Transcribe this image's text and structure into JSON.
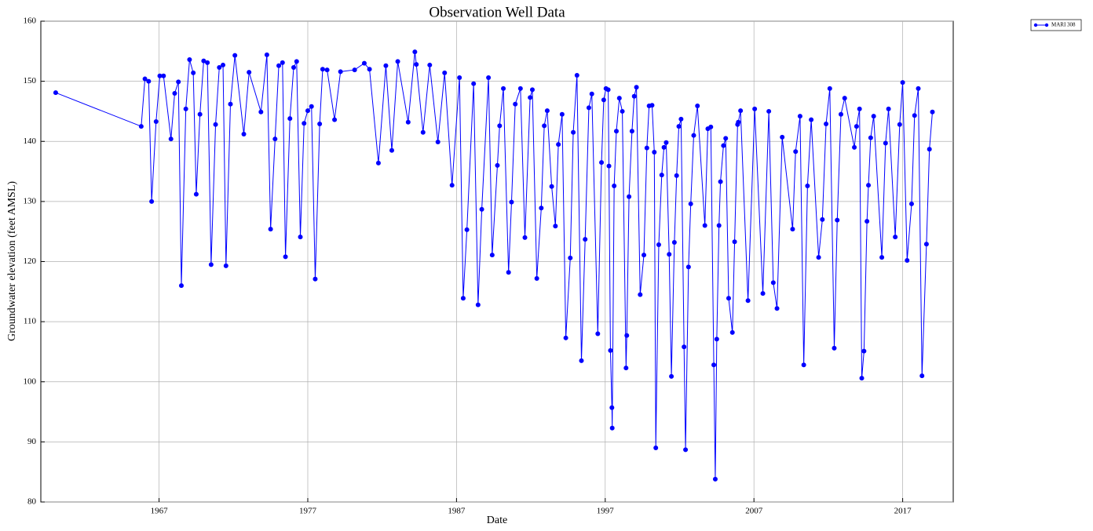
{
  "chart_data": {
    "type": "line",
    "title": "Observation Well Data",
    "x_label": "Date",
    "y_label": "Groundwater elevation (feet AMSL)",
    "xlim": [
      1959.05,
      2020.4
    ],
    "ylim": [
      80,
      160
    ],
    "xticks": [
      1967,
      1977,
      1987,
      1997,
      2007,
      2017
    ],
    "yticks": [
      80,
      90,
      100,
      110,
      120,
      130,
      140,
      150,
      160
    ],
    "grid": true,
    "legend": "upper right",
    "x": [
      1960.05,
      1965.8,
      1966.05,
      1966.3,
      1966.5,
      1966.8,
      1967.05,
      1967.3,
      1967.8,
      1968.05,
      1968.3,
      1968.5,
      1968.8,
      1969.05,
      1969.3,
      1969.5,
      1969.75,
      1970.0,
      1970.25,
      1970.5,
      1970.8,
      1971.05,
      1971.3,
      1971.5,
      1971.8,
      1972.1,
      1972.7,
      1973.05,
      1973.85,
      1974.25,
      1974.5,
      1974.8,
      1975.05,
      1975.3,
      1975.5,
      1975.8,
      1976.05,
      1976.25,
      1976.5,
      1976.75,
      1977.0,
      1977.25,
      1977.5,
      1977.8,
      1978.0,
      1978.3,
      1978.8,
      1979.2,
      1980.15,
      1980.8,
      1981.15,
      1981.75,
      1982.25,
      1982.65,
      1983.05,
      1983.75,
      1984.2,
      1984.3,
      1984.75,
      1985.2,
      1985.75,
      1986.2,
      1986.7,
      1987.2,
      1987.45,
      1987.7,
      1988.15,
      1988.45,
      1988.7,
      1989.15,
      1989.4,
      1989.75,
      1989.9,
      1990.15,
      1990.5,
      1990.7,
      1990.95,
      1991.3,
      1991.6,
      1991.95,
      1992.1,
      1992.4,
      1992.7,
      1992.9,
      1993.1,
      1993.4,
      1993.65,
      1993.85,
      1994.1,
      1994.35,
      1994.65,
      1994.85,
      1995.1,
      1995.4,
      1995.65,
      1995.9,
      1996.1,
      1996.5,
      1996.75,
      1996.9,
      1997.05,
      1997.2,
      1997.25,
      1997.35,
      1997.45,
      1997.47,
      1997.6,
      1997.75,
      1997.95,
      1998.15,
      1998.4,
      1998.45,
      1998.6,
      1998.8,
      1998.95,
      1999.1,
      1999.35,
      1999.6,
      1999.8,
      1999.95,
      2000.15,
      2000.3,
      2000.4,
      2000.6,
      2000.8,
      2000.95,
      2001.1,
      2001.3,
      2001.45,
      2001.65,
      2001.8,
      2001.95,
      2002.1,
      2002.3,
      2002.4,
      2002.6,
      2002.75,
      2002.95,
      2003.2,
      2003.7,
      2003.9,
      2004.1,
      2004.3,
      2004.4,
      2004.5,
      2004.65,
      2004.75,
      2004.95,
      2005.1,
      2005.3,
      2005.55,
      2005.7,
      2005.9,
      2005.95,
      2006.1,
      2006.6,
      2007.05,
      2007.6,
      2008.0,
      2008.3,
      2008.55,
      2008.9,
      2009.6,
      2009.8,
      2010.1,
      2010.35,
      2010.6,
      2010.85,
      2011.35,
      2011.6,
      2011.85,
      2012.1,
      2012.4,
      2012.6,
      2012.85,
      2013.1,
      2013.75,
      2013.9,
      2014.1,
      2014.25,
      2014.4,
      2014.6,
      2014.7,
      2014.85,
      2015.05,
      2015.6,
      2015.85,
      2016.05,
      2016.5,
      2016.8,
      2017.0,
      2017.3,
      2017.6,
      2017.8,
      2018.05,
      2018.3,
      2018.6,
      2018.8,
      2019.0
    ],
    "series": [
      {
        "name": "MARI 308",
        "color": "#0000ff",
        "values": [
          148.1,
          142.5,
          150.4,
          150.0,
          130.0,
          143.3,
          150.9,
          150.9,
          140.4,
          148.0,
          149.9,
          116.0,
          145.4,
          153.6,
          151.4,
          131.2,
          144.5,
          153.4,
          153.1,
          119.5,
          142.8,
          152.3,
          152.7,
          119.3,
          146.2,
          154.3,
          141.2,
          151.5,
          144.9,
          154.4,
          125.4,
          140.4,
          152.6,
          153.1,
          120.8,
          143.8,
          152.3,
          153.3,
          124.1,
          143.0,
          145.1,
          145.8,
          117.1,
          142.9,
          152.0,
          151.9,
          143.6,
          151.6,
          151.9,
          153.0,
          152.0,
          136.4,
          152.6,
          138.5,
          153.3,
          143.2,
          154.9,
          152.8,
          141.5,
          152.7,
          139.9,
          151.4,
          132.7,
          150.6,
          113.9,
          125.3,
          149.6,
          112.8,
          128.7,
          150.6,
          121.1,
          136.0,
          142.6,
          148.8,
          118.2,
          129.9,
          146.2,
          148.8,
          124.0,
          147.3,
          148.6,
          117.2,
          128.9,
          142.6,
          145.1,
          132.5,
          125.9,
          139.5,
          144.5,
          107.3,
          120.6,
          141.5,
          151.0,
          103.5,
          123.7,
          145.6,
          147.9,
          108.0,
          136.5,
          146.9,
          148.8,
          148.6,
          135.9,
          105.2,
          95.7,
          92.3,
          132.6,
          141.7,
          147.2,
          145.0,
          102.3,
          107.7,
          130.8,
          141.7,
          147.5,
          149.0,
          114.5,
          121.1,
          138.9,
          145.9,
          146.0,
          138.2,
          89.0,
          122.8,
          134.4,
          139.0,
          139.8,
          121.2,
          100.9,
          123.2,
          134.3,
          142.5,
          143.7,
          105.8,
          88.7,
          119.1,
          129.6,
          141.0,
          145.9,
          126.0,
          142.1,
          142.4,
          102.8,
          83.8,
          107.1,
          126.0,
          133.3,
          139.3,
          140.5,
          113.9,
          108.2,
          123.3,
          142.8,
          143.2,
          145.1,
          113.5,
          145.4,
          114.7,
          145.0,
          116.5,
          112.2,
          140.7,
          125.4,
          138.3,
          144.2,
          102.8,
          132.6,
          143.6,
          120.7,
          127.0,
          142.9,
          148.8,
          105.6,
          126.9,
          144.5,
          147.2,
          139.0,
          142.5,
          145.4,
          100.6,
          105.1,
          126.7,
          132.7,
          140.6,
          144.2,
          120.7,
          139.7,
          145.4,
          124.1,
          142.8,
          149.8,
          120.2,
          129.6,
          144.3,
          148.8,
          101.0,
          122.9,
          138.7,
          144.9
        ]
      }
    ]
  }
}
